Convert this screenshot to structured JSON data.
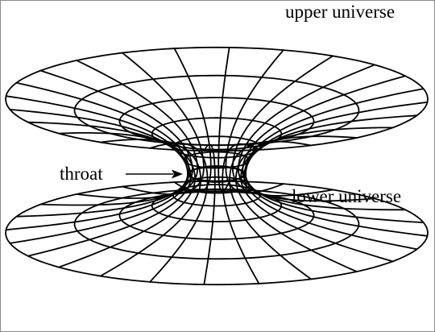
{
  "diagram": {
    "labels": {
      "upper": "upper universe",
      "lower": "lower universe",
      "throat": "throat"
    },
    "line_color": "#000000",
    "background": "#ffffff"
  }
}
